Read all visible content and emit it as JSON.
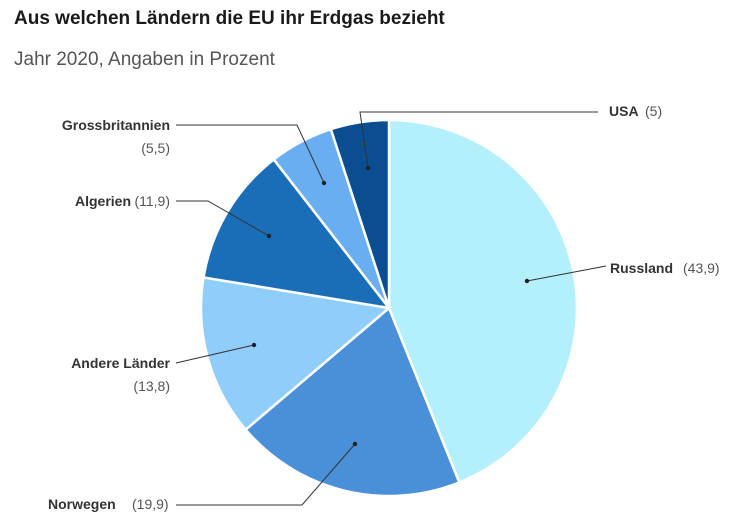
{
  "chart_data": {
    "type": "pie",
    "title": "Aus welchen Ländern die EU ihr Erdgas bezieht",
    "subtitle": "Jahr 2020, Angaben in Prozent",
    "slices": [
      {
        "name": "Russland",
        "value": 43.9,
        "value_label": "(43,9)",
        "color": "#b3f0fb"
      },
      {
        "name": "Norwegen",
        "value": 19.9,
        "value_label": "(19,9)",
        "color": "#4a90d9"
      },
      {
        "name": "Andere Länder",
        "value": 13.8,
        "value_label": "(13,8)",
        "color": "#8fcdfa"
      },
      {
        "name": "Algerien",
        "value": 11.9,
        "value_label": "(11,9)",
        "color": "#1a6eb8"
      },
      {
        "name": "Grossbritannien",
        "value": 5.5,
        "value_label": "(5,5)",
        "color": "#6aaef2"
      },
      {
        "name": "USA",
        "value": 5,
        "value_label": "(5)",
        "color": "#0a4d91"
      }
    ]
  }
}
